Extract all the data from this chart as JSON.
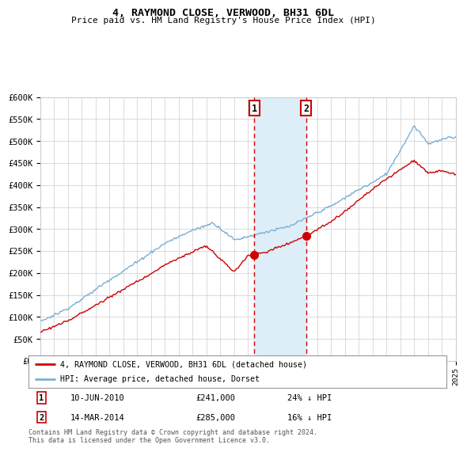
{
  "title": "4, RAYMOND CLOSE, VERWOOD, BH31 6DL",
  "subtitle": "Price paid vs. HM Land Registry's House Price Index (HPI)",
  "ylabel_ticks": [
    "£0",
    "£50K",
    "£100K",
    "£150K",
    "£200K",
    "£250K",
    "£300K",
    "£350K",
    "£400K",
    "£450K",
    "£500K",
    "£550K",
    "£600K"
  ],
  "ytick_values": [
    0,
    50000,
    100000,
    150000,
    200000,
    250000,
    300000,
    350000,
    400000,
    450000,
    500000,
    550000,
    600000
  ],
  "x_start_year": 1995,
  "x_end_year": 2025,
  "marker1_year": 2010.44,
  "marker2_year": 2014.2,
  "marker1_price": 241000,
  "marker2_price": 285000,
  "legend_line1": "4, RAYMOND CLOSE, VERWOOD, BH31 6DL (detached house)",
  "legend_line2": "HPI: Average price, detached house, Dorset",
  "footer": "Contains HM Land Registry data © Crown copyright and database right 2024.\nThis data is licensed under the Open Government Licence v3.0.",
  "line1_color": "#cc0000",
  "line2_color": "#7bafd4",
  "shade_color": "#ddeef8",
  "marker_color": "#cc0000",
  "background_color": "#ffffff",
  "grid_color": "#cccccc"
}
